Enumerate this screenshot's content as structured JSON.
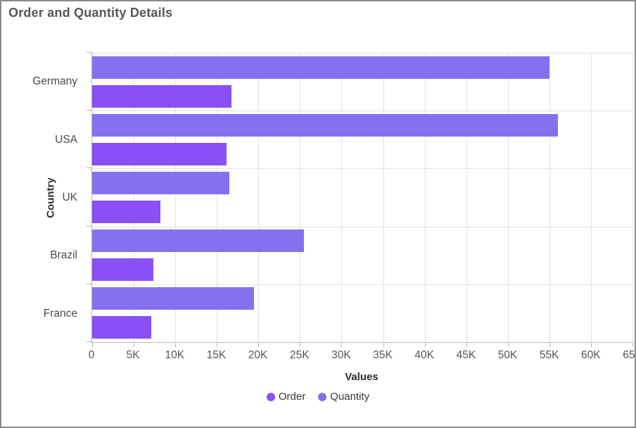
{
  "frame": {
    "border_color": "#8a8a8a",
    "background": "#ffffff"
  },
  "header": {
    "title": "Order and Quantity Details"
  },
  "chart_data": {
    "type": "bar",
    "orientation": "horizontal",
    "title": "Order and Quantity Details",
    "categories": [
      "Germany",
      "USA",
      "UK",
      "Brazil",
      "France"
    ],
    "series": [
      {
        "name": "Order",
        "color": "#8a4ff5",
        "values": [
          16800,
          16200,
          8200,
          7400,
          7100
        ]
      },
      {
        "name": "Quantity",
        "color": "#8471ef",
        "values": [
          55000,
          56000,
          16500,
          25500,
          19500
        ]
      }
    ],
    "xlabel": "Values",
    "ylabel": "Country",
    "xlim": [
      0,
      65000
    ],
    "x_tick_interval": 5000,
    "x_tick_labels": [
      "0",
      "5K",
      "10K",
      "15K",
      "20K",
      "25K",
      "30K",
      "35K",
      "40K",
      "45K",
      "50K",
      "55K",
      "60K",
      "65K"
    ],
    "grid": true,
    "legend_position": "bottom",
    "bar_visual_order_top_to_bottom": [
      "Quantity",
      "Order"
    ]
  },
  "colors": {
    "grid": "#e3e3e3",
    "axis": "#b5b5b5",
    "tick_text": "#555555",
    "category_text": "#494949",
    "title_text": "#565656",
    "axis_title_text": "#2f2f2f",
    "legend_text": "#3a3a3a"
  }
}
